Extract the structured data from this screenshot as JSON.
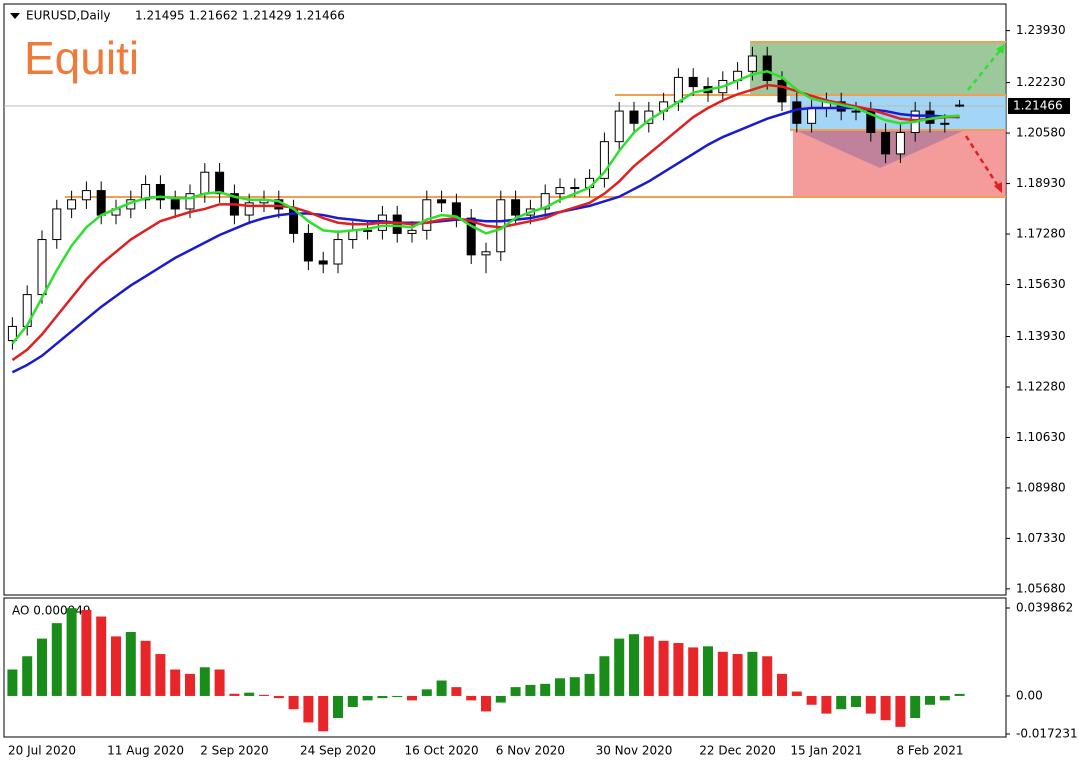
{
  "header": {
    "symbol": "EURUSD,Daily",
    "ohlc_text": "1.21495 1.21662 1.21429 1.21466",
    "logo": "Equiti"
  },
  "chart_data": [
    {
      "type": "candlestick",
      "categories": [
        null,
        null,
        "20 Jul 2020",
        null,
        null,
        null,
        null,
        null,
        null,
        "11 Aug 2020",
        null,
        null,
        null,
        null,
        null,
        "2 Sep 2020",
        null,
        null,
        null,
        null,
        null,
        null,
        "24 Sep 2020",
        null,
        null,
        null,
        null,
        null,
        null,
        "16 Oct 2020",
        null,
        null,
        null,
        null,
        null,
        "6 Nov 2020",
        null,
        null,
        null,
        null,
        null,
        null,
        "30 Nov 2020",
        null,
        null,
        null,
        null,
        null,
        null,
        "22 Dec 2020",
        null,
        null,
        null,
        null,
        null,
        "15 Jan 2021",
        null,
        null,
        null,
        null,
        null,
        null,
        "8 Feb 2021",
        null,
        null
      ],
      "open": [
        1.138,
        1.1426,
        1.153,
        1.171,
        1.181,
        1.184,
        1.187,
        1.179,
        1.181,
        1.184,
        1.189,
        1.184,
        1.181,
        1.186,
        1.193,
        1.186,
        1.179,
        1.183,
        1.184,
        1.181,
        1.173,
        1.164,
        1.163,
        1.171,
        1.174,
        1.174,
        1.179,
        1.173,
        1.174,
        1.184,
        1.183,
        1.178,
        1.166,
        1.167,
        1.184,
        1.179,
        1.181,
        1.186,
        1.188,
        1.188,
        1.191,
        1.203,
        1.213,
        1.209,
        1.213,
        1.216,
        1.224,
        1.221,
        1.219,
        1.223,
        1.226,
        1.231,
        1.223,
        1.216,
        1.209,
        1.214,
        1.216,
        1.213,
        1.213,
        1.206,
        1.199,
        1.206,
        1.213,
        1.209,
        1.21495
      ],
      "high": [
        1.1456,
        1.156,
        1.174,
        1.184,
        1.187,
        1.19,
        1.19,
        1.184,
        1.187,
        1.192,
        1.192,
        1.187,
        1.189,
        1.196,
        1.196,
        1.189,
        1.186,
        1.187,
        1.187,
        1.184,
        1.176,
        1.167,
        1.174,
        1.177,
        1.177,
        1.182,
        1.182,
        1.177,
        1.187,
        1.187,
        1.186,
        1.181,
        1.17,
        1.187,
        1.187,
        1.184,
        1.189,
        1.191,
        1.191,
        1.194,
        1.206,
        1.216,
        1.216,
        1.216,
        1.219,
        1.227,
        1.227,
        1.224,
        1.226,
        1.229,
        1.234,
        1.234,
        1.226,
        1.219,
        1.217,
        1.219,
        1.219,
        1.216,
        1.216,
        1.209,
        1.209,
        1.216,
        1.216,
        1.212,
        1.21662
      ],
      "low": [
        1.135,
        1.1396,
        1.15,
        1.168,
        1.178,
        1.181,
        1.176,
        1.176,
        1.178,
        1.181,
        1.181,
        1.178,
        1.178,
        1.183,
        1.183,
        1.176,
        1.176,
        1.18,
        1.178,
        1.17,
        1.161,
        1.16,
        1.16,
        1.168,
        1.171,
        1.171,
        1.17,
        1.17,
        1.171,
        1.18,
        1.175,
        1.163,
        1.16,
        1.164,
        1.176,
        1.176,
        1.178,
        1.183,
        1.185,
        1.185,
        1.188,
        1.2,
        1.206,
        1.206,
        1.21,
        1.213,
        1.218,
        1.216,
        1.216,
        1.22,
        1.223,
        1.22,
        1.213,
        1.206,
        1.206,
        1.211,
        1.21,
        1.21,
        1.203,
        1.196,
        1.196,
        1.203,
        1.206,
        1.206,
        1.21429
      ],
      "close": [
        1.1426,
        1.153,
        1.171,
        1.181,
        1.184,
        1.187,
        1.179,
        1.181,
        1.184,
        1.189,
        1.184,
        1.181,
        1.186,
        1.193,
        1.186,
        1.179,
        1.183,
        1.184,
        1.181,
        1.173,
        1.164,
        1.163,
        1.171,
        1.174,
        1.174,
        1.179,
        1.173,
        1.174,
        1.184,
        1.183,
        1.178,
        1.166,
        1.167,
        1.184,
        1.179,
        1.181,
        1.186,
        1.188,
        1.188,
        1.191,
        1.203,
        1.213,
        1.209,
        1.213,
        1.216,
        1.224,
        1.221,
        1.219,
        1.223,
        1.226,
        1.231,
        1.223,
        1.216,
        1.209,
        1.214,
        1.216,
        1.213,
        1.213,
        1.206,
        1.199,
        1.206,
        1.213,
        1.209,
        1.209,
        1.21466
      ],
      "up_color": "#ffffff",
      "down_color": "#000000",
      "series": [
        {
          "color": "#1a1ad0",
          "values": [
            1.1276,
            1.13,
            1.133,
            1.137,
            1.141,
            1.145,
            1.149,
            1.1525,
            1.156,
            1.159,
            1.162,
            1.165,
            1.1675,
            1.17,
            1.1725,
            1.1745,
            1.1765,
            1.178,
            1.179,
            1.1795,
            1.1795,
            1.179,
            1.178,
            1.1775,
            1.177,
            1.177,
            1.1765,
            1.1765,
            1.1765,
            1.177,
            1.1775,
            1.1775,
            1.177,
            1.177,
            1.1775,
            1.178,
            1.179,
            1.18,
            1.181,
            1.182,
            1.1835,
            1.185,
            1.1875,
            1.19,
            1.193,
            1.196,
            1.199,
            1.202,
            1.2045,
            1.2065,
            1.2085,
            1.2105,
            1.212,
            1.2135,
            1.214,
            1.214,
            1.214,
            1.214,
            1.2135,
            1.213,
            1.212,
            1.2115,
            1.2115,
            1.2112,
            1.211
          ]
        },
        {
          "color": "#e02020",
          "values": [
            1.1316,
            1.135,
            1.14,
            1.146,
            1.152,
            1.158,
            1.163,
            1.167,
            1.171,
            1.174,
            1.177,
            1.1785,
            1.18,
            1.181,
            1.1825,
            1.1825,
            1.182,
            1.182,
            1.182,
            1.1815,
            1.18,
            1.178,
            1.1765,
            1.176,
            1.176,
            1.1765,
            1.1765,
            1.176,
            1.1765,
            1.1775,
            1.178,
            1.177,
            1.1755,
            1.175,
            1.176,
            1.177,
            1.178,
            1.18,
            1.1815,
            1.183,
            1.186,
            1.19,
            1.195,
            1.199,
            1.203,
            1.207,
            1.211,
            1.214,
            1.2165,
            1.2185,
            1.22,
            1.2215,
            1.221,
            1.2195,
            1.218,
            1.2165,
            1.2155,
            1.2145,
            1.2135,
            1.212,
            1.2105,
            1.21,
            1.2105,
            1.211,
            1.2112
          ]
        },
        {
          "color": "#2ee02e",
          "values": [
            1.137,
            1.143,
            1.152,
            1.161,
            1.169,
            1.175,
            1.179,
            1.181,
            1.183,
            1.1845,
            1.185,
            1.1845,
            1.1845,
            1.186,
            1.1865,
            1.185,
            1.184,
            1.184,
            1.1835,
            1.181,
            1.177,
            1.174,
            1.1735,
            1.174,
            1.1745,
            1.1755,
            1.1755,
            1.175,
            1.1775,
            1.179,
            1.1785,
            1.1755,
            1.173,
            1.1745,
            1.178,
            1.18,
            1.1815,
            1.184,
            1.186,
            1.188,
            1.193,
            1.2,
            1.206,
            1.21,
            1.213,
            1.216,
            1.219,
            1.22,
            1.221,
            1.223,
            1.225,
            1.226,
            1.224,
            1.22,
            1.217,
            1.216,
            1.215,
            1.214,
            1.212,
            1.21,
            1.209,
            1.2095,
            1.2105,
            1.2112,
            1.2115
          ]
        }
      ],
      "current_price": {
        "value": 1.21466,
        "label": "1.21466"
      },
      "ylim": [
        1.0548,
        1.248
      ],
      "yticks": [
        {
          "value": 1.2393,
          "label": "1.23930"
        },
        {
          "value": 1.2223,
          "label": "1.22230"
        },
        {
          "value": 1.2058,
          "label": "1.20580"
        },
        {
          "value": 1.1893,
          "label": "1.18930"
        },
        {
          "value": 1.1728,
          "label": "1.17280"
        },
        {
          "value": 1.1563,
          "label": "1.15630"
        },
        {
          "value": 1.1393,
          "label": "1.13930"
        },
        {
          "value": 1.1228,
          "label": "1.12280"
        },
        {
          "value": 1.1063,
          "label": "1.10630"
        },
        {
          "value": 1.0898,
          "label": "1.08980"
        },
        {
          "value": 1.0733,
          "label": "1.07330"
        },
        {
          "value": 1.0568,
          "label": "1.05680"
        }
      ]
    },
    {
      "type": "histogram-ao",
      "label": "AO 0.000949",
      "values": [
        0.012,
        0.018,
        0.026,
        0.033,
        0.0398,
        0.039,
        0.036,
        0.027,
        0.029,
        0.025,
        0.019,
        0.012,
        0.01,
        0.013,
        0.012,
        0.001,
        0.0015,
        0.0005,
        -0.001,
        -0.006,
        -0.012,
        -0.016,
        -0.01,
        -0.005,
        -0.002,
        -0.001,
        -0.0005,
        -0.002,
        0.003,
        0.007,
        0.004,
        -0.002,
        -0.007,
        -0.003,
        0.004,
        0.005,
        0.0055,
        0.008,
        0.0085,
        0.01,
        0.018,
        0.026,
        0.028,
        0.027,
        0.025,
        0.024,
        0.022,
        0.0225,
        0.02,
        0.019,
        0.02,
        0.018,
        0.01,
        0.002,
        -0.004,
        -0.008,
        -0.006,
        -0.005,
        -0.008,
        -0.011,
        -0.014,
        -0.01,
        -0.004,
        -0.002,
        0.000949
      ],
      "up_color": "#1a8c1a",
      "down_color": "#e8262a",
      "ylim": [
        -0.0186,
        0.0444
      ],
      "yticks": [
        0.039862,
        {
          "value": 0,
          "label": "0.00"
        },
        -0.017231
      ]
    }
  ]
}
